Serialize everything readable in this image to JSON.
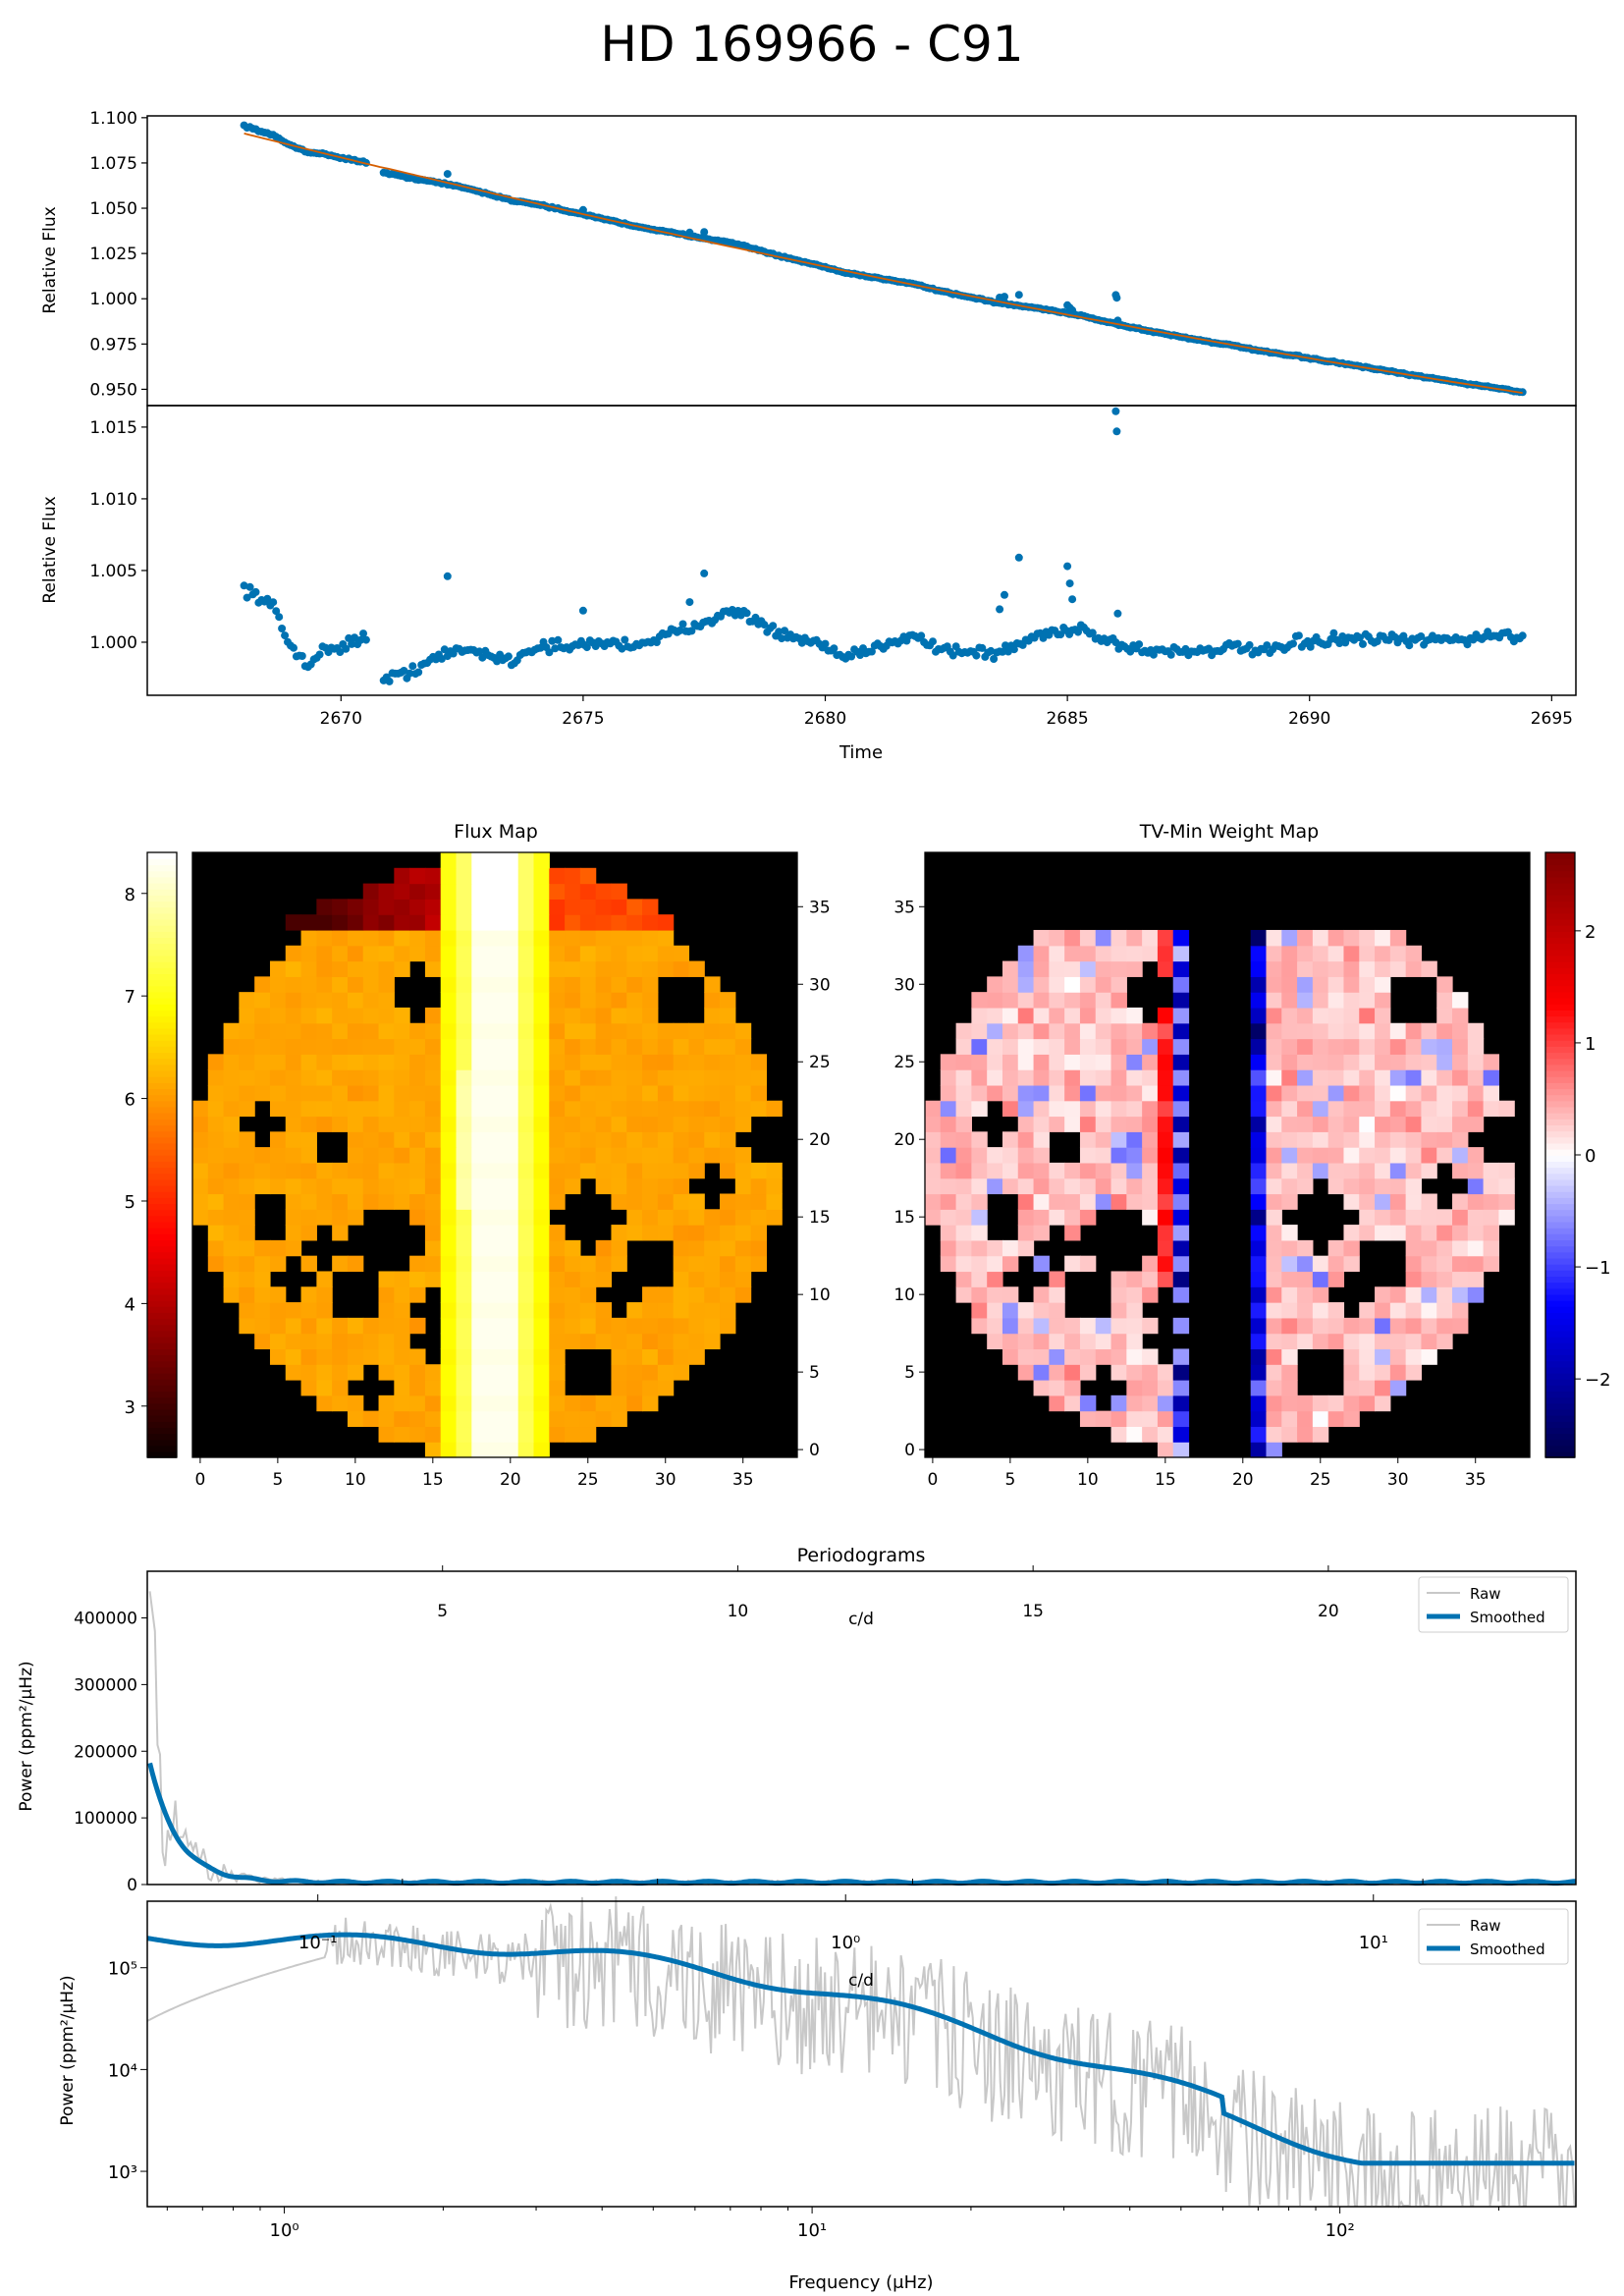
{
  "title": "HD 169966 - C91",
  "lightcurve": {
    "top_ylabel": "Relative Flux",
    "bottom_ylabel": "Relative Flux",
    "xlabel": "Time",
    "xticks": [
      2670,
      2675,
      2680,
      2685,
      2690,
      2695
    ],
    "top_yticks": [
      "0.950",
      "0.975",
      "1.000",
      "1.025",
      "1.050",
      "1.075",
      "1.100"
    ],
    "bottom_yticks": [
      "1.000",
      "1.005",
      "1.010",
      "1.015"
    ]
  },
  "maps": {
    "flux_title": "Flux Map",
    "weight_title": "TV-Min Weight Map",
    "flux_colorbar_ticks": [
      "3",
      "4",
      "5",
      "6",
      "7",
      "8"
    ],
    "weight_colorbar_ticks": [
      "−2",
      "−1",
      "0",
      "1",
      "2"
    ],
    "pixel_ticks": [
      "0",
      "5",
      "10",
      "15",
      "20",
      "25",
      "30",
      "35"
    ]
  },
  "periodograms": {
    "title": "Periodograms",
    "xlabel": "Frequency (μHz)",
    "ylabel": "Power (ppm²/μHz)",
    "cd_label": "c/d",
    "linear_yticks": [
      "0",
      "100000",
      "200000",
      "300000",
      "400000"
    ],
    "linear_cd_ticks": [
      "5",
      "10",
      "15",
      "20"
    ],
    "log_yticks": [
      "10³",
      "10⁴",
      "10⁵"
    ],
    "log_cd_ticks": [
      "10⁻¹",
      "10⁰",
      "10¹"
    ],
    "log_xticks": [
      "10⁰",
      "10¹",
      "10²"
    ],
    "legend": [
      "Raw",
      "Smoothed"
    ],
    "colors": {
      "raw": "#c8c8c8",
      "smoothed": "#0072b2"
    }
  },
  "chart_data": [
    {
      "type": "scatter",
      "xlabel": "Time",
      "ylabel": "Relative Flux",
      "xlim": [
        2666,
        2695.5
      ],
      "ylim": [
        0.941,
        1.101
      ],
      "series": [
        {
          "points": "blue",
          "x_range": [
            2668,
            2694.4
          ],
          "y_range": [
            1.095,
            0.949
          ]
        },
        {
          "model": "orange",
          "x_range": [
            2668,
            2694.4
          ],
          "y_range": [
            1.09,
            0.949
          ]
        }
      ],
      "colors": {
        "points": "#0072b2",
        "model": "#d55e00"
      }
    },
    {
      "type": "scatter",
      "xlabel": "Time",
      "ylabel": "Relative Flux",
      "xlim": [
        2666,
        2695.5
      ],
      "ylim": [
        0.9963,
        1.0165
      ],
      "colors": {
        "points": "#0072b2"
      }
    },
    {
      "type": "heatmap",
      "title": "Flux Map",
      "x_range": [
        0,
        38
      ],
      "y_range": [
        0,
        38
      ],
      "colorbar": {
        "range": [
          2.5,
          8.4
        ],
        "colormap": "hot"
      }
    },
    {
      "type": "heatmap",
      "title": "TV-Min Weight Map",
      "x_range": [
        0,
        38
      ],
      "y_range": [
        0,
        38
      ],
      "colorbar": {
        "range": [
          -2.7,
          2.7
        ],
        "colormap": "seismic"
      }
    },
    {
      "type": "line",
      "title": "Periodograms",
      "xlabel": "Frequency (μHz)",
      "ylabel": "Power (ppm²/μHz)",
      "ylim": [
        0,
        470000
      ],
      "series": [
        {
          "name": "Raw"
        },
        {
          "name": "Smoothed"
        }
      ]
    },
    {
      "type": "line",
      "xlabel": "Frequency (μHz)",
      "ylabel": "Power (ppm²/μHz)",
      "xscale": "log",
      "yscale": "log",
      "xlim": [
        0.55,
        280
      ],
      "ylim": [
        450,
        450000
      ],
      "series": [
        {
          "name": "Raw"
        },
        {
          "name": "Smoothed"
        }
      ]
    }
  ]
}
